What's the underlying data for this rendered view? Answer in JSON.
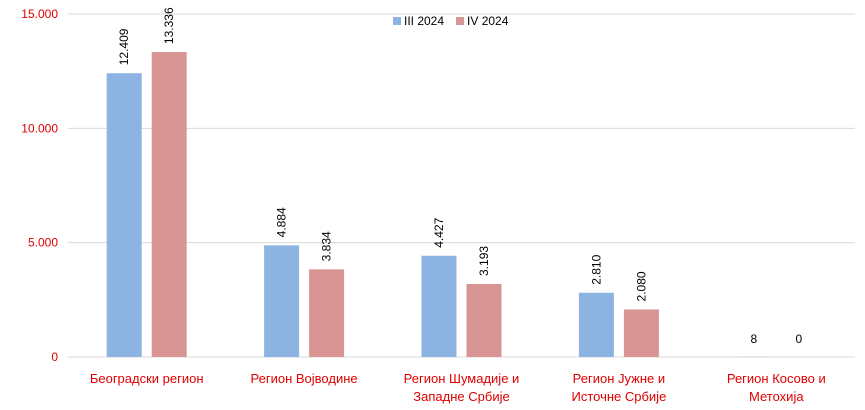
{
  "chart_data": {
    "type": "bar",
    "categories": [
      "Београдски регион",
      "Регион Војводине",
      "Регион Шумадије и\nЗападне Србије",
      "Регион Јужне и\nИсточне Србије",
      "Регион Косово и\nМетохија"
    ],
    "series": [
      {
        "name": "III 2024",
        "color": "#8db3e2",
        "values": [
          12409,
          4884,
          4427,
          2810,
          8
        ],
        "value_labels": [
          "12.409",
          "4.884",
          "4.427",
          "2.810",
          "8"
        ]
      },
      {
        "name": "IV 2024",
        "color": "#d99594",
        "values": [
          13336,
          3834,
          3193,
          2080,
          0
        ],
        "value_labels": [
          "13.336",
          "3.834",
          "3.193",
          "2.080",
          "0"
        ]
      }
    ],
    "ylim": [
      0,
      15000
    ],
    "yticks": [
      0,
      {
        "value": 5000,
        "label": "5.000"
      },
      {
        "value": 10000,
        "label": "10.000"
      },
      {
        "value": 15000,
        "label": "15.000"
      }
    ],
    "grid": true,
    "legend": "top"
  }
}
